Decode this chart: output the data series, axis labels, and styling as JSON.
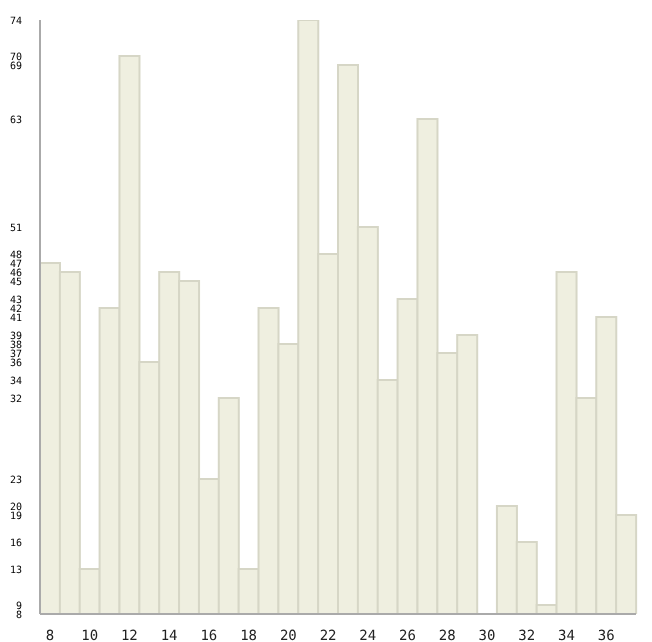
{
  "chart_data": {
    "type": "bar",
    "categories": [
      "8",
      null,
      "10",
      null,
      "12",
      null,
      "14",
      null,
      "16",
      null,
      "18",
      null,
      "20",
      null,
      "22",
      null,
      "24",
      null,
      "26",
      null,
      "28",
      null,
      "30",
      null,
      "32",
      null,
      "34",
      null,
      "36",
      null
    ],
    "values": [
      47,
      46,
      13,
      42,
      70,
      36,
      46,
      45,
      23,
      32,
      13,
      42,
      38,
      74,
      48,
      69,
      51,
      34,
      43,
      63,
      37,
      39,
      8,
      20,
      16,
      9,
      46,
      32,
      41,
      19
    ],
    "color": "#efefe0",
    "ylim": [
      8,
      74
    ],
    "yticks": [
      74,
      70,
      69,
      63,
      51,
      48,
      47,
      46,
      45,
      43,
      42,
      41,
      39,
      38,
      37,
      36,
      34,
      32,
      23,
      20,
      19,
      16,
      13,
      9,
      8
    ],
    "grid": false
  }
}
